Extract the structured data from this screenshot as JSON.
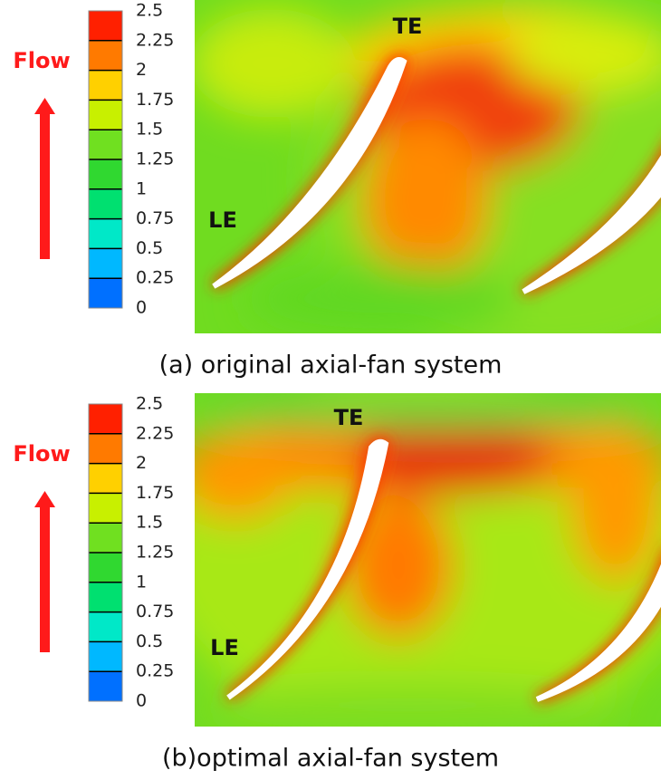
{
  "panels": [
    {
      "flow_label": "Flow",
      "te_label": "TE",
      "le_label": "LE",
      "colorbar_ticks": [
        "2.5",
        "2.25",
        "2",
        "1.75",
        "1.5",
        "1.25",
        "1",
        "0.75",
        "0.5",
        "0.25",
        "0"
      ],
      "caption": "(a) original axial-fan system"
    },
    {
      "flow_label": "Flow",
      "te_label": "TE",
      "le_label": "LE",
      "colorbar_ticks": [
        "2.5",
        "2.25",
        "2",
        "1.75",
        "1.5",
        "1.25",
        "1",
        "0.75",
        "0.5",
        "0.25",
        "0"
      ],
      "caption": "(b)optimal axial-fan system"
    }
  ]
}
